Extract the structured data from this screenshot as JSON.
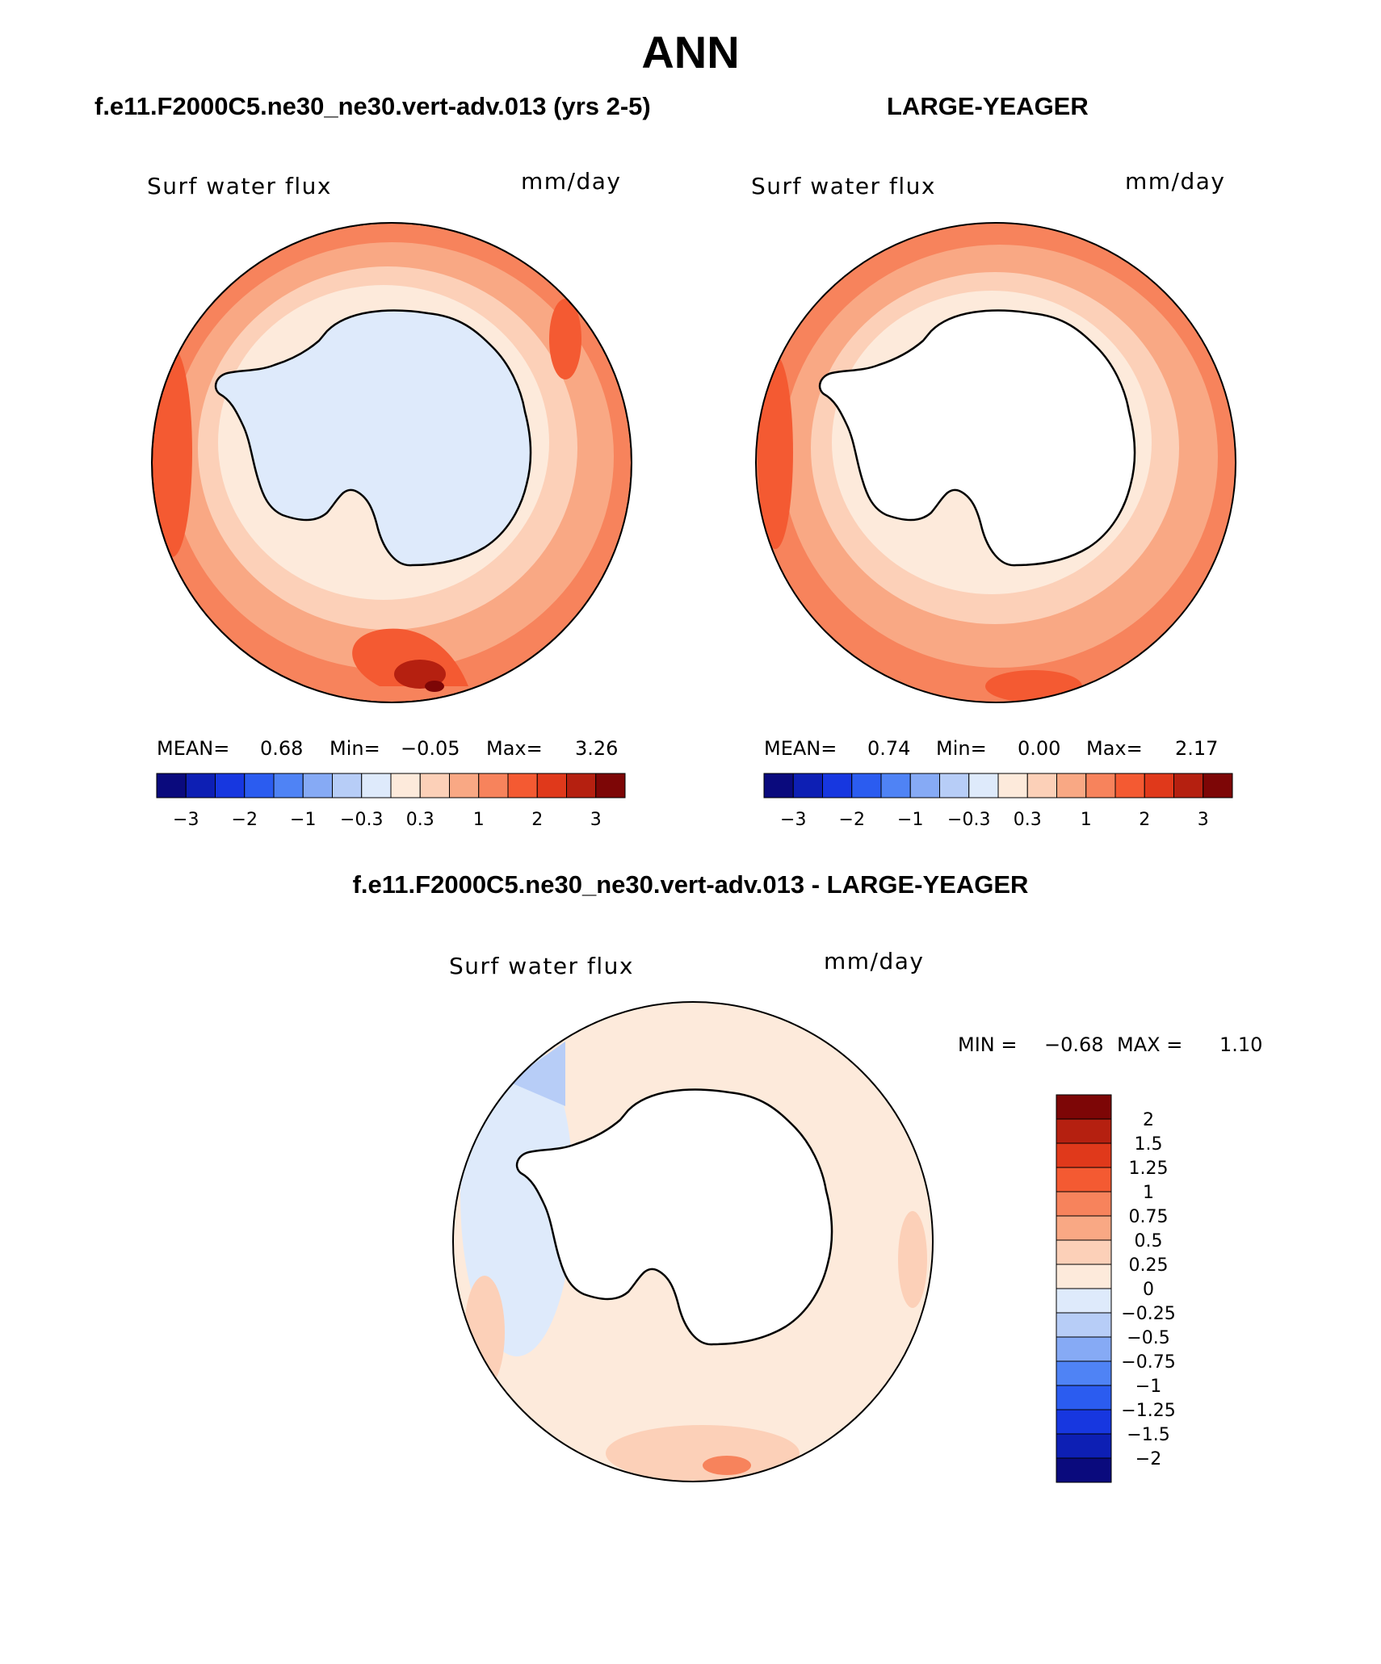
{
  "figure": {
    "title": "ANN",
    "panels": [
      {
        "case": "f.e11.F2000C5.ne30_ne30.vert-adv.013 (yrs 2-5)",
        "variable": "Surf water flux",
        "units": "mm/day",
        "stats": {
          "mean_label": "MEAN=",
          "mean": "0.68",
          "min_label": "Min=",
          "min": "−0.05",
          "max_label": "Max=",
          "max": "3.26"
        }
      },
      {
        "case": "LARGE-YEAGER",
        "variable": "Surf water flux",
        "units": "mm/day",
        "stats": {
          "mean_label": "MEAN=",
          "mean": "0.74",
          "min_label": "Min=",
          "min": "0.00",
          "max_label": "Max=",
          "max": "2.17"
        }
      },
      {
        "case": "f.e11.F2000C5.ne30_ne30.vert-adv.013 - LARGE-YEAGER",
        "variable": "Surf water flux",
        "units": "mm/day",
        "stats": {
          "min_label": "MIN =",
          "min": "−0.68",
          "max_label": "MAX =",
          "max": "1.10"
        }
      }
    ]
  },
  "colorbar_horizontal": {
    "colors": [
      "#0a0a7d",
      "#0d1fb4",
      "#1737e0",
      "#2b5cf0",
      "#4f83f5",
      "#86aaf5",
      "#b7cdf7",
      "#deeafb",
      "#fdeadb",
      "#fcd0b8",
      "#f9a884",
      "#f7835c",
      "#f45a32",
      "#e0391b",
      "#b52010",
      "#7d0606"
    ],
    "tick_labels": [
      "−3",
      "−2",
      "−1",
      "−0.3",
      "0.3",
      "1",
      "2",
      "3"
    ]
  },
  "colorbar_vertical": {
    "colors": [
      "#7d0606",
      "#b52010",
      "#e0391b",
      "#f45a32",
      "#f7835c",
      "#f9a884",
      "#fcd0b8",
      "#fdeadb",
      "#deeafb",
      "#b7cdf7",
      "#86aaf5",
      "#4f83f5",
      "#2b5cf0",
      "#1737e0",
      "#0d1fb4",
      "#0a0a7d"
    ],
    "tick_labels": [
      "2",
      "1.5",
      "1.25",
      "1",
      "0.75",
      "0.5",
      "0.25",
      "0",
      "−0.25",
      "−0.5",
      "−0.75",
      "−1",
      "−1.25",
      "−1.5",
      "−2"
    ]
  },
  "colors": {
    "coast": "#000000",
    "land_mask": "#ffffff"
  }
}
